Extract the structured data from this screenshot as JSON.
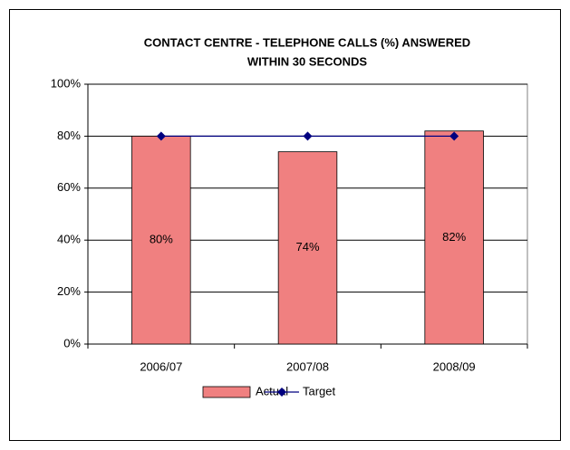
{
  "chart_data": {
    "type": "bar",
    "title": [
      "CONTACT CENTRE - TELEPHONE CALLS (%) ANSWERED",
      "WITHIN 30 SECONDS"
    ],
    "categories": [
      "2006/07",
      "2007/08",
      "2008/09"
    ],
    "series": [
      {
        "name": "Actual",
        "type": "bar",
        "color": "#f08080",
        "values": [
          80,
          74,
          82
        ],
        "value_labels": [
          "80%",
          "74%",
          "82%"
        ]
      },
      {
        "name": "Target",
        "type": "line",
        "color": "#000080",
        "values": [
          80,
          80,
          80
        ]
      }
    ],
    "ylim": [
      0,
      100
    ],
    "yticks": [
      {
        "value": 0,
        "label": "0%"
      },
      {
        "value": 20,
        "label": "20%"
      },
      {
        "value": 40,
        "label": "40%"
      },
      {
        "value": 60,
        "label": "60%"
      },
      {
        "value": 80,
        "label": "80%"
      },
      {
        "value": 100,
        "label": "100%"
      }
    ],
    "grid": true,
    "legend": "bottom"
  }
}
